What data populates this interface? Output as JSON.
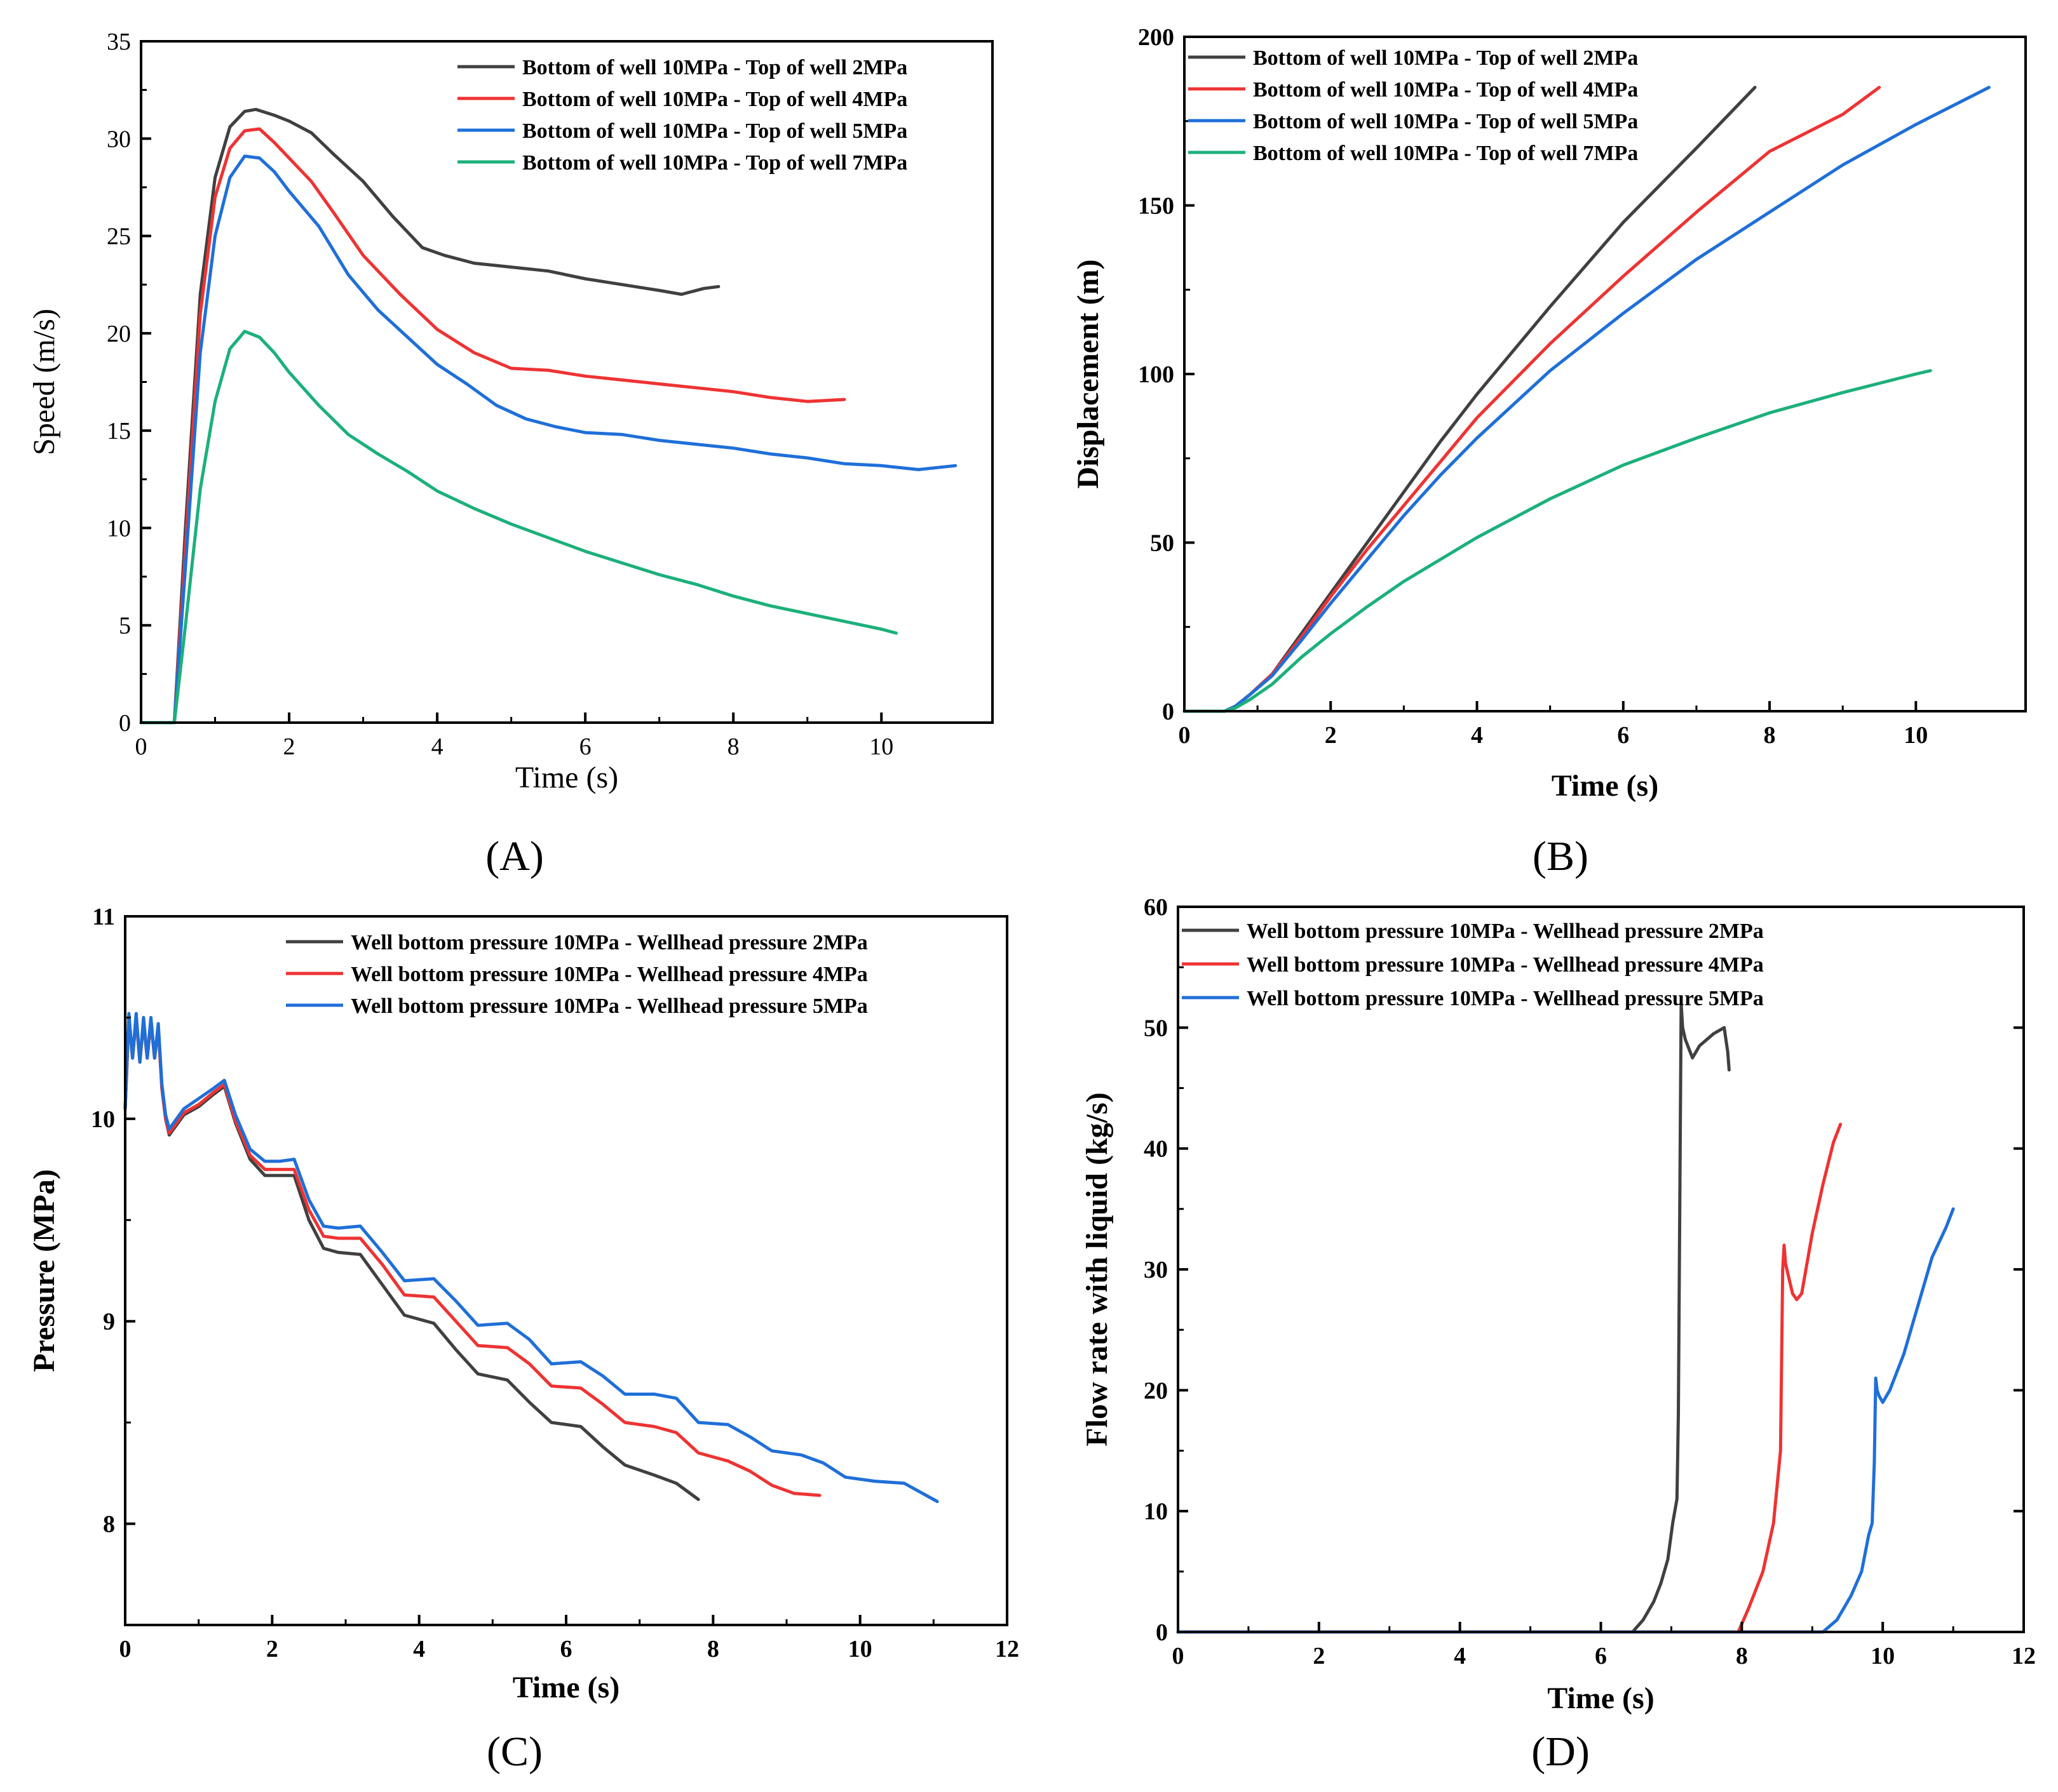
{
  "figure": {
    "colors": {
      "gray": "#404040",
      "red": "#ee3333",
      "blue": "#1f6fd8",
      "green": "#1cb07a",
      "axis": "#000000"
    }
  },
  "chart_data": [
    {
      "type": "line",
      "panel_label": "(A)",
      "xlabel": "Time (s)",
      "ylabel": "Speed (m/s)",
      "xlim": [
        0,
        11.5
      ],
      "ylim": [
        0,
        35
      ],
      "xticks": [
        0,
        2,
        4,
        6,
        8,
        10
      ],
      "yticks": [
        0,
        5,
        10,
        15,
        20,
        25,
        30,
        35
      ],
      "legend": "top-right",
      "grid": false,
      "series": [
        {
          "name": "Bottom of well 10MPa - Top of well 2MPa",
          "color": "#404040",
          "x": [
            0,
            0.45,
            0.6,
            0.8,
            1.0,
            1.2,
            1.4,
            1.55,
            1.8,
            2.0,
            2.3,
            2.6,
            3.0,
            3.4,
            3.8,
            4.1,
            4.5,
            5.0,
            5.5,
            6.0,
            6.5,
            7.0,
            7.3,
            7.6,
            7.8
          ],
          "y": [
            0,
            0,
            10,
            22,
            28,
            30.6,
            31.4,
            31.5,
            31.2,
            30.9,
            30.3,
            29.2,
            27.8,
            26.0,
            24.4,
            24.0,
            23.6,
            23.4,
            23.2,
            22.8,
            22.5,
            22.2,
            22.0,
            22.3,
            22.4
          ]
        },
        {
          "name": "Bottom of well 10MPa - Top of well 4MPa",
          "color": "#ee3333",
          "x": [
            0,
            0.45,
            0.6,
            0.8,
            1.0,
            1.2,
            1.4,
            1.6,
            1.8,
            2.0,
            2.3,
            2.6,
            3.0,
            3.5,
            4.0,
            4.5,
            5.0,
            5.5,
            6.0,
            6.5,
            7.0,
            7.5,
            8.0,
            8.5,
            9.0,
            9.5
          ],
          "y": [
            0,
            0,
            9,
            21,
            27,
            29.5,
            30.4,
            30.5,
            29.8,
            29.0,
            27.8,
            26.2,
            24.0,
            22.0,
            20.2,
            19.0,
            18.2,
            18.1,
            17.8,
            17.6,
            17.4,
            17.2,
            17.0,
            16.7,
            16.5,
            16.6
          ]
        },
        {
          "name": "Bottom of well 10MPa - Top of well 5MPa",
          "color": "#1f6fd8",
          "x": [
            0,
            0.45,
            0.6,
            0.8,
            1.0,
            1.2,
            1.4,
            1.6,
            1.8,
            2.0,
            2.4,
            2.8,
            3.2,
            3.6,
            4.0,
            4.4,
            4.8,
            5.2,
            5.6,
            6.0,
            6.5,
            7.0,
            7.5,
            8.0,
            8.5,
            9.0,
            9.5,
            10.0,
            10.5,
            11.0
          ],
          "y": [
            0,
            0,
            8,
            19,
            25,
            28,
            29.1,
            29.0,
            28.3,
            27.3,
            25.5,
            23.0,
            21.2,
            19.8,
            18.4,
            17.4,
            16.3,
            15.6,
            15.2,
            14.9,
            14.8,
            14.5,
            14.3,
            14.1,
            13.8,
            13.6,
            13.3,
            13.2,
            13.0,
            13.2
          ]
        },
        {
          "name": "Bottom of well 10MPa - Top of well 7MPa",
          "color": "#1cb07a",
          "x": [
            0,
            0.45,
            0.6,
            0.8,
            1.0,
            1.2,
            1.4,
            1.6,
            1.8,
            2.0,
            2.4,
            2.8,
            3.2,
            3.6,
            4.0,
            4.5,
            5.0,
            5.5,
            6.0,
            6.5,
            7.0,
            7.5,
            8.0,
            8.5,
            9.0,
            9.5,
            10.0,
            10.2
          ],
          "y": [
            0,
            0,
            5,
            12,
            16.5,
            19.2,
            20.1,
            19.8,
            19.0,
            18.0,
            16.3,
            14.8,
            13.8,
            12.9,
            11.9,
            11.0,
            10.2,
            9.5,
            8.8,
            8.2,
            7.6,
            7.1,
            6.5,
            6.0,
            5.6,
            5.2,
            4.8,
            4.6
          ]
        }
      ]
    },
    {
      "type": "line",
      "panel_label": "(B)",
      "xlabel": "Time (s)",
      "ylabel": "Displacement (m)",
      "xlim": [
        0,
        11.5
      ],
      "ylim": [
        0,
        200
      ],
      "xticks": [
        0,
        2,
        4,
        6,
        8,
        10
      ],
      "yticks": [
        0,
        50,
        100,
        150,
        200
      ],
      "legend": "top-left",
      "grid": false,
      "series": [
        {
          "name": "Bottom of well 10MPa - Top of well 2MPa",
          "color": "#404040",
          "x": [
            0,
            0.55,
            0.7,
            0.9,
            1.2,
            1.6,
            2.0,
            2.5,
            3.0,
            3.5,
            4.0,
            5.0,
            6.0,
            7.0,
            7.8
          ],
          "y": [
            0,
            0,
            1.5,
            5,
            11,
            23,
            35,
            50,
            65,
            80,
            94,
            120,
            145,
            167,
            185
          ]
        },
        {
          "name": "Bottom of well 10MPa - Top of well 4MPa",
          "color": "#ee3333",
          "x": [
            0,
            0.55,
            0.7,
            0.9,
            1.2,
            1.6,
            2.0,
            2.5,
            3.0,
            3.5,
            4.0,
            5.0,
            6.0,
            7.0,
            8.0,
            9.0,
            9.5
          ],
          "y": [
            0,
            0,
            1.5,
            5,
            11,
            22,
            34,
            48,
            61,
            74,
            87,
            109,
            129,
            148,
            166,
            177,
            185
          ]
        },
        {
          "name": "Bottom of well 10MPa - Top of well 5MPa",
          "color": "#1f6fd8",
          "x": [
            0,
            0.55,
            0.7,
            0.9,
            1.2,
            1.6,
            2.0,
            2.5,
            3.0,
            3.5,
            4.0,
            5.0,
            6.0,
            7.0,
            8.0,
            9.0,
            10.0,
            11.0
          ],
          "y": [
            0,
            0,
            1.5,
            5,
            10.5,
            21,
            32,
            45,
            58,
            70,
            81,
            101,
            118,
            134,
            148,
            162,
            174,
            185
          ]
        },
        {
          "name": "Bottom of well 10MPa - Top of well 7MPa",
          "color": "#1cb07a",
          "x": [
            0,
            0.55,
            0.7,
            0.9,
            1.2,
            1.6,
            2.0,
            2.5,
            3.0,
            3.5,
            4.0,
            5.0,
            6.0,
            7.0,
            8.0,
            9.0,
            10.0,
            10.2
          ],
          "y": [
            0,
            0,
            1,
            3.5,
            8,
            16,
            23,
            31,
            38.5,
            45,
            51.5,
            63,
            73,
            81,
            88.5,
            94.5,
            100,
            101
          ]
        }
      ]
    },
    {
      "type": "line",
      "panel_label": "(C)",
      "xlabel": "Time (s)",
      "ylabel": "Pressure (MPa)",
      "xlim": [
        0,
        12
      ],
      "ylim": [
        7.5,
        11
      ],
      "xticks": [
        0,
        2,
        4,
        6,
        8,
        10,
        12
      ],
      "yticks": [
        8,
        9,
        10,
        11
      ],
      "legend": "top-right",
      "grid": false,
      "series": [
        {
          "name": "Well bottom pressure 10MPa - Wellhead pressure 2MPa",
          "color": "#404040",
          "x": [
            0,
            0.05,
            0.1,
            0.15,
            0.2,
            0.25,
            0.3,
            0.35,
            0.4,
            0.45,
            0.5,
            0.55,
            0.6,
            0.8,
            1.0,
            1.2,
            1.35,
            1.5,
            1.7,
            1.9,
            2.1,
            2.3,
            2.5,
            2.7,
            2.9,
            3.2,
            3.5,
            3.8,
            4.2,
            4.5,
            4.8,
            5.2,
            5.5,
            5.8,
            6.2,
            6.5,
            6.8,
            7.2,
            7.5,
            7.8
          ],
          "y": [
            10.05,
            10.5,
            10.3,
            10.5,
            10.28,
            10.48,
            10.3,
            10.48,
            10.3,
            10.45,
            10.15,
            10.0,
            9.92,
            10.02,
            10.06,
            10.12,
            10.16,
            9.98,
            9.8,
            9.72,
            9.72,
            9.72,
            9.5,
            9.36,
            9.34,
            9.33,
            9.18,
            9.03,
            8.99,
            8.86,
            8.74,
            8.71,
            8.6,
            8.5,
            8.48,
            8.38,
            8.29,
            8.24,
            8.2,
            8.12
          ]
        },
        {
          "name": "Well bottom pressure 10MPa - Wellhead pressure 4MPa",
          "color": "#ee3333",
          "x": [
            0,
            0.05,
            0.1,
            0.15,
            0.2,
            0.25,
            0.3,
            0.35,
            0.4,
            0.45,
            0.5,
            0.55,
            0.6,
            0.8,
            1.0,
            1.2,
            1.35,
            1.5,
            1.7,
            1.9,
            2.1,
            2.3,
            2.5,
            2.7,
            2.9,
            3.2,
            3.5,
            3.8,
            4.2,
            4.5,
            4.8,
            5.2,
            5.5,
            5.8,
            6.2,
            6.5,
            6.8,
            7.2,
            7.5,
            7.8,
            8.2,
            8.5,
            8.8,
            9.1,
            9.45
          ],
          "y": [
            10.05,
            10.5,
            10.3,
            10.5,
            10.28,
            10.48,
            10.3,
            10.48,
            10.3,
            10.45,
            10.15,
            10.0,
            9.93,
            10.03,
            10.07,
            10.13,
            10.17,
            9.99,
            9.82,
            9.75,
            9.75,
            9.75,
            9.55,
            9.42,
            9.41,
            9.41,
            9.28,
            9.13,
            9.12,
            9.0,
            8.88,
            8.87,
            8.79,
            8.68,
            8.67,
            8.59,
            8.5,
            8.48,
            8.45,
            8.35,
            8.31,
            8.26,
            8.19,
            8.15,
            8.14
          ]
        },
        {
          "name": "Well bottom pressure 10MPa - Wellhead pressure 5MPa",
          "color": "#1f6fd8",
          "x": [
            0,
            0.05,
            0.1,
            0.15,
            0.2,
            0.25,
            0.3,
            0.35,
            0.4,
            0.45,
            0.5,
            0.55,
            0.6,
            0.8,
            1.0,
            1.2,
            1.35,
            1.5,
            1.7,
            1.9,
            2.1,
            2.3,
            2.5,
            2.7,
            2.9,
            3.2,
            3.5,
            3.8,
            4.2,
            4.5,
            4.8,
            5.2,
            5.5,
            5.8,
            6.2,
            6.5,
            6.8,
            7.2,
            7.5,
            7.8,
            8.2,
            8.5,
            8.8,
            9.2,
            9.5,
            9.8,
            10.2,
            10.6,
            10.8,
            11.05
          ],
          "y": [
            10.05,
            10.52,
            10.3,
            10.52,
            10.28,
            10.5,
            10.3,
            10.5,
            10.3,
            10.47,
            10.17,
            10.02,
            9.95,
            10.05,
            10.1,
            10.15,
            10.19,
            10.02,
            9.85,
            9.79,
            9.79,
            9.8,
            9.6,
            9.47,
            9.46,
            9.47,
            9.34,
            9.2,
            9.21,
            9.1,
            8.98,
            8.99,
            8.91,
            8.79,
            8.8,
            8.73,
            8.64,
            8.64,
            8.62,
            8.5,
            8.49,
            8.43,
            8.36,
            8.34,
            8.3,
            8.23,
            8.21,
            8.2,
            8.16,
            8.11
          ]
        }
      ]
    },
    {
      "type": "line",
      "panel_label": "(D)",
      "xlabel": "Time (s)",
      "ylabel": "Flow rate with liquid (kg/s)",
      "xlim": [
        0,
        12
      ],
      "ylim": [
        0,
        60
      ],
      "xticks": [
        0,
        2,
        4,
        6,
        8,
        10,
        12
      ],
      "yticks": [
        0,
        10,
        20,
        30,
        40,
        50,
        60
      ],
      "legend": "top-left",
      "grid": false,
      "series": [
        {
          "name": "Well bottom pressure 10MPa - Wellhead pressure 2MPa",
          "color": "#404040",
          "x": [
            0,
            6.45,
            6.6,
            6.75,
            6.85,
            6.95,
            7.02,
            7.08,
            7.1,
            7.12,
            7.14,
            7.16,
            7.2,
            7.3,
            7.4,
            7.6,
            7.75,
            7.8,
            7.82
          ],
          "y": [
            0,
            0,
            1,
            2.5,
            4,
            6,
            9,
            11,
            18,
            35,
            52,
            50,
            49,
            47.5,
            48.5,
            49.5,
            50,
            48,
            46.5
          ]
        },
        {
          "name": "Well bottom pressure 10MPa - Wellhead pressure 4MPa",
          "color": "#ee3333",
          "x": [
            0,
            7.95,
            8.1,
            8.3,
            8.45,
            8.55,
            8.58,
            8.6,
            8.62,
            8.66,
            8.72,
            8.78,
            8.85,
            9.0,
            9.15,
            9.3,
            9.4
          ],
          "y": [
            0,
            0,
            2,
            5,
            9,
            15,
            30,
            32,
            30.5,
            29.5,
            28,
            27.5,
            28,
            33,
            37,
            40.5,
            42
          ]
        },
        {
          "name": "Well bottom pressure 10MPa - Wellhead pressure 5MPa",
          "color": "#1f6fd8",
          "x": [
            0,
            9.15,
            9.35,
            9.55,
            9.7,
            9.8,
            9.85,
            9.88,
            9.9,
            9.92,
            9.95,
            10.0,
            10.1,
            10.3,
            10.5,
            10.7,
            10.9,
            11.0
          ],
          "y": [
            0,
            0,
            1,
            3,
            5,
            8,
            9,
            14,
            21,
            20,
            19.5,
            19,
            20,
            23,
            27,
            31,
            33.5,
            35
          ]
        }
      ]
    }
  ]
}
